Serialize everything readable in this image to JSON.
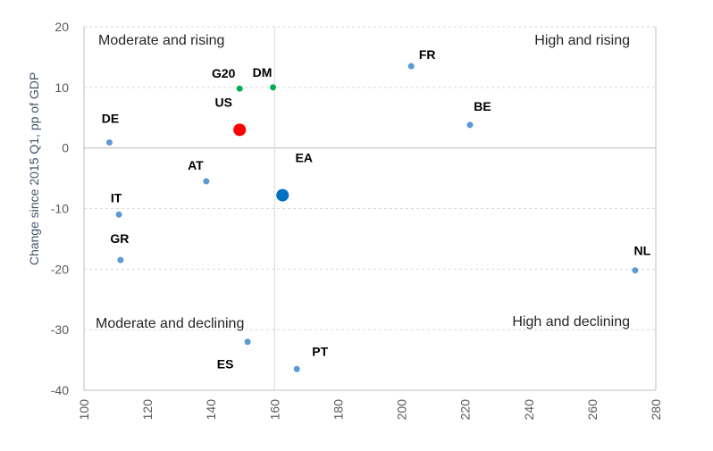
{
  "chart_data": {
    "type": "scatter",
    "title": "",
    "xlabel": "",
    "ylabel": "Change since 2015 Q1, pp of GDP",
    "xlim": [
      100,
      280
    ],
    "ylim": [
      -40,
      20
    ],
    "xticks": [
      "100",
      "120",
      "140",
      "160",
      "180",
      "200",
      "220",
      "240",
      "260",
      "280"
    ],
    "yticks": [
      "20",
      "10",
      "0",
      "-10",
      "-20",
      "-30",
      "-40"
    ],
    "divider_x": 160,
    "divider_y": 0,
    "grid": true,
    "quadrant_labels": {
      "top_left": "Moderate and rising",
      "top_right": "High and rising",
      "bottom_left": "Moderate and declining",
      "bottom_right": "High and declining"
    },
    "points": [
      {
        "label": "FR",
        "x": 203,
        "y": 13.5,
        "color": "#5b9bd5",
        "size": "small"
      },
      {
        "label": "BE",
        "x": 221.5,
        "y": 3.8,
        "color": "#5b9bd5",
        "size": "small"
      },
      {
        "label": "DE",
        "x": 108,
        "y": 0.9,
        "color": "#5b9bd5",
        "size": "small"
      },
      {
        "label": "AT",
        "x": 138.5,
        "y": -5.5,
        "color": "#5b9bd5",
        "size": "small"
      },
      {
        "label": "IT",
        "x": 111,
        "y": -11,
        "color": "#5b9bd5",
        "size": "small"
      },
      {
        "label": "GR",
        "x": 111.5,
        "y": -18.5,
        "color": "#5b9bd5",
        "size": "small"
      },
      {
        "label": "NL",
        "x": 273.5,
        "y": -20.2,
        "color": "#5b9bd5",
        "size": "small"
      },
      {
        "label": "ES",
        "x": 151.5,
        "y": -32,
        "color": "#5b9bd5",
        "size": "small"
      },
      {
        "label": "PT",
        "x": 167,
        "y": -36.5,
        "color": "#5b9bd5",
        "size": "small"
      },
      {
        "label": "G20",
        "x": 149,
        "y": 9.8,
        "color": "#00b050",
        "size": "small"
      },
      {
        "label": "DM",
        "x": 159.5,
        "y": 10,
        "color": "#00b050",
        "size": "small"
      },
      {
        "label": "US",
        "x": 149,
        "y": 3,
        "color": "#ff0000",
        "size": "large"
      },
      {
        "label": "EA",
        "x": 162.5,
        "y": -7.8,
        "color": "#0070c0",
        "size": "large"
      }
    ]
  }
}
